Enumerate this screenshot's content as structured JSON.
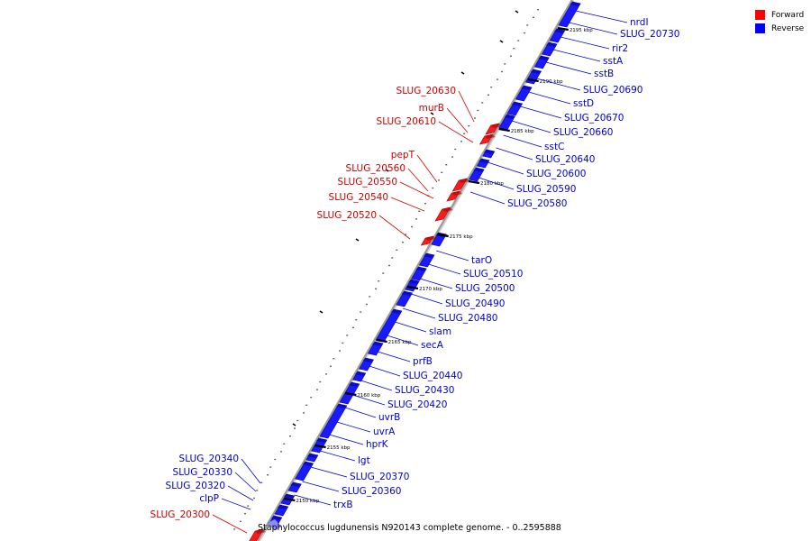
{
  "caption": "Staphylococcus lugdunensis N920143 complete genome. - 0..2595888",
  "legend": {
    "forward": {
      "label": "Forward",
      "color": "#ff0000"
    },
    "reverse": {
      "label": "Reverse",
      "color": "#0000ff"
    }
  },
  "ticks": [
    "2150 kbp",
    "2155 kbp",
    "2160 kbp",
    "2165 kbp",
    "2170 kbp",
    "2175 kbp",
    "2180 kbp",
    "2185 kbp",
    "2190 kbp",
    "2195 kbp"
  ],
  "reverse_genes": [
    "nrdI",
    "SLUG_20730",
    "rir2",
    "sstA",
    "sstB",
    "SLUG_20690",
    "sstD",
    "SLUG_20670",
    "SLUG_20660",
    "sstC",
    "SLUG_20640",
    "SLUG_20600",
    "SLUG_20590",
    "SLUG_20580",
    "tarO",
    "SLUG_20510",
    "SLUG_20500",
    "SLUG_20490",
    "SLUG_20480",
    "slam",
    "secA",
    "prfB",
    "SLUG_20440",
    "SLUG_20430",
    "SLUG_20420",
    "uvrB",
    "uvrA",
    "hprK",
    "lgt",
    "SLUG_20370",
    "SLUG_20360",
    "trxB"
  ],
  "forward_genes": [
    "SLUG_20630",
    "murB",
    "SLUG_20610",
    "pepT",
    "SLUG_20560",
    "SLUG_20550",
    "SLUG_20540",
    "SLUG_20520",
    "SLUG_20300"
  ],
  "left_reverse_genes": [
    "SLUG_20340",
    "SLUG_20330",
    "SLUG_20320",
    "clpP"
  ]
}
